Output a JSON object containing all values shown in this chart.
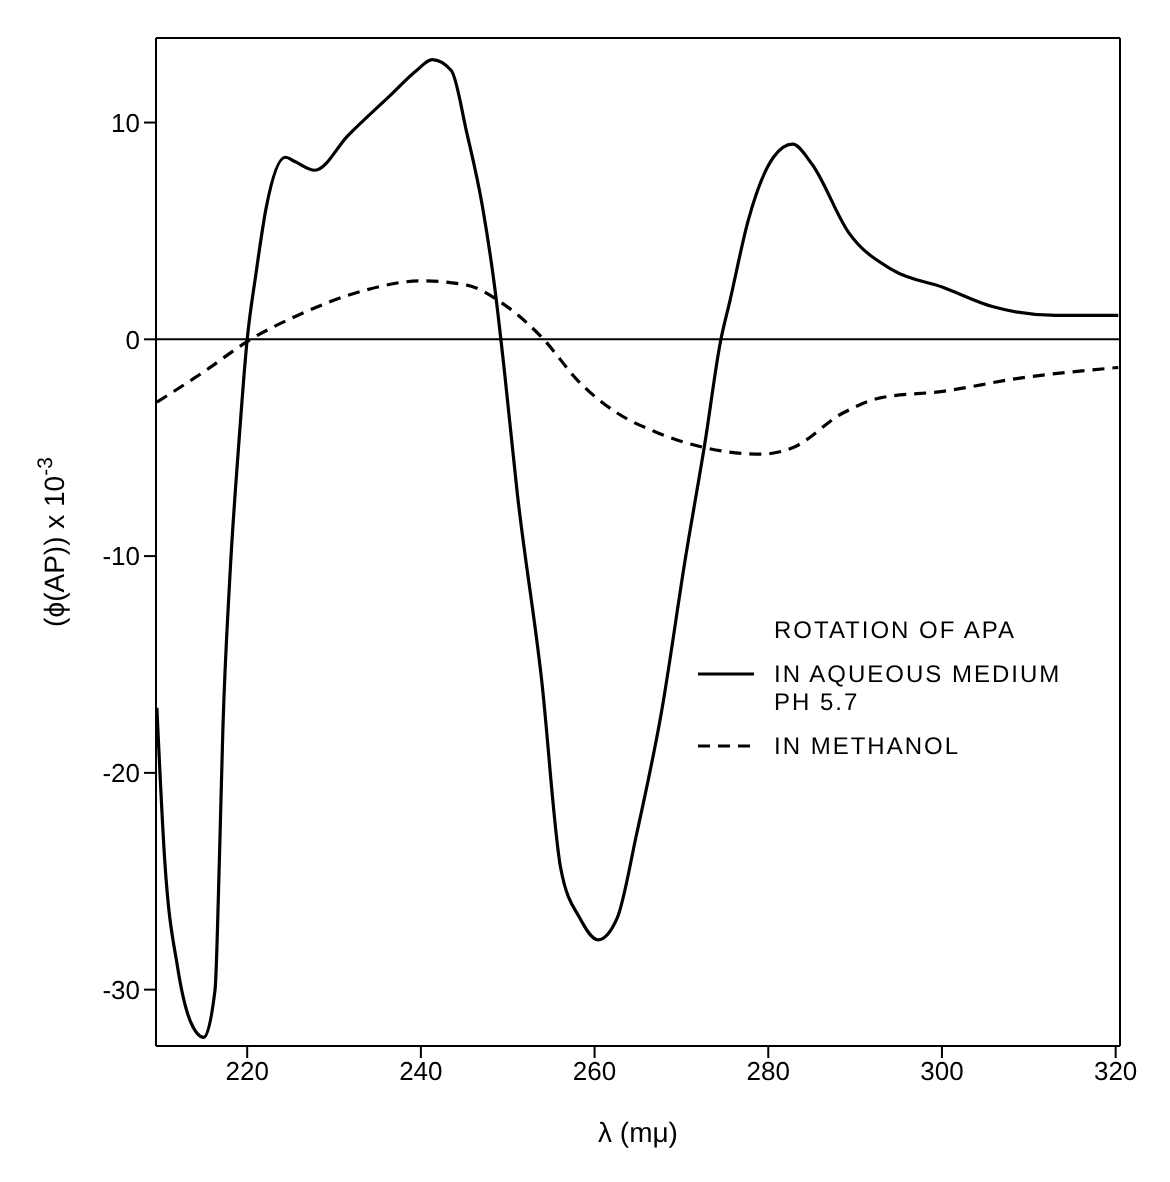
{
  "chart_data": {
    "type": "line",
    "xlabel": "λ (mμ)",
    "ylabel": "(ϕ(AP)) x 10$^{-3}$",
    "legend_title": "ROTATION OF APA",
    "xlim": [
      209.5,
      320.5
    ],
    "ylim": [
      -32.6,
      13.9
    ],
    "xticks": [
      220,
      240,
      260,
      280,
      300,
      320
    ],
    "yticks": [
      -30,
      -20,
      -10,
      0,
      10
    ],
    "legend": "right",
    "marker": "none",
    "ref_lines": [
      {
        "axis": "y",
        "value": 0,
        "color": "#000000",
        "line_style": "solid"
      }
    ],
    "series": [
      {
        "name": "IN AQUEOUS MEDIUM PH 5.7",
        "color": "#000000",
        "line_style": "solid",
        "x": [
          209.6,
          210.5,
          212,
          213.5,
          215,
          216.3,
          216.8,
          217.2,
          218,
          219,
          220,
          221,
          222.2,
          224.4,
          225.5,
          227.8,
          231.6,
          236.6,
          239.5,
          241.3,
          243.5,
          245.3,
          247.1,
          248.5,
          249.6,
          251.1,
          253.9,
          256.1,
          258.3,
          260.4,
          262.6,
          264.8,
          267.7,
          270.5,
          272.7,
          274.5,
          275.6,
          277.7,
          280.6,
          282.8,
          285,
          289.3,
          294.3,
          300.1,
          305.9,
          313.1,
          320.3
        ],
        "values": [
          -17,
          -24,
          -29,
          -31.5,
          -32.2,
          -30,
          -24,
          -18,
          -11,
          -5,
          0,
          3,
          6.1,
          8.4,
          8.2,
          7.8,
          9.4,
          11.3,
          12.4,
          12.9,
          12.4,
          9.5,
          6.1,
          2.4,
          -1.4,
          -7.1,
          -15.7,
          -24.4,
          -26.7,
          -27.7,
          -26.7,
          -22.9,
          -17.2,
          -10,
          -4.8,
          -0.1,
          1.8,
          5.5,
          8.4,
          9,
          8.1,
          4.9,
          3.2,
          2.4,
          1.5,
          1.1,
          1.1
        ]
      },
      {
        "name": "IN METHANOL",
        "color": "#000000",
        "line_style": "dashed",
        "x": [
          209.6,
          215,
          220.4,
          225.8,
          233,
          240.2,
          245.3,
          249.6,
          253.9,
          258.3,
          262.6,
          266.9,
          272.7,
          279.2,
          282.8,
          288.6,
          292.9,
          300.1,
          308.8,
          320.3
        ],
        "values": [
          -2.9,
          -1.5,
          0,
          1.1,
          2.2,
          2.7,
          2.5,
          1.6,
          0.1,
          -2,
          -3.4,
          -4.25,
          -5,
          -5.3,
          -5,
          -3.4,
          -2.7,
          -2.4,
          -1.8,
          -1.3
        ]
      }
    ]
  }
}
